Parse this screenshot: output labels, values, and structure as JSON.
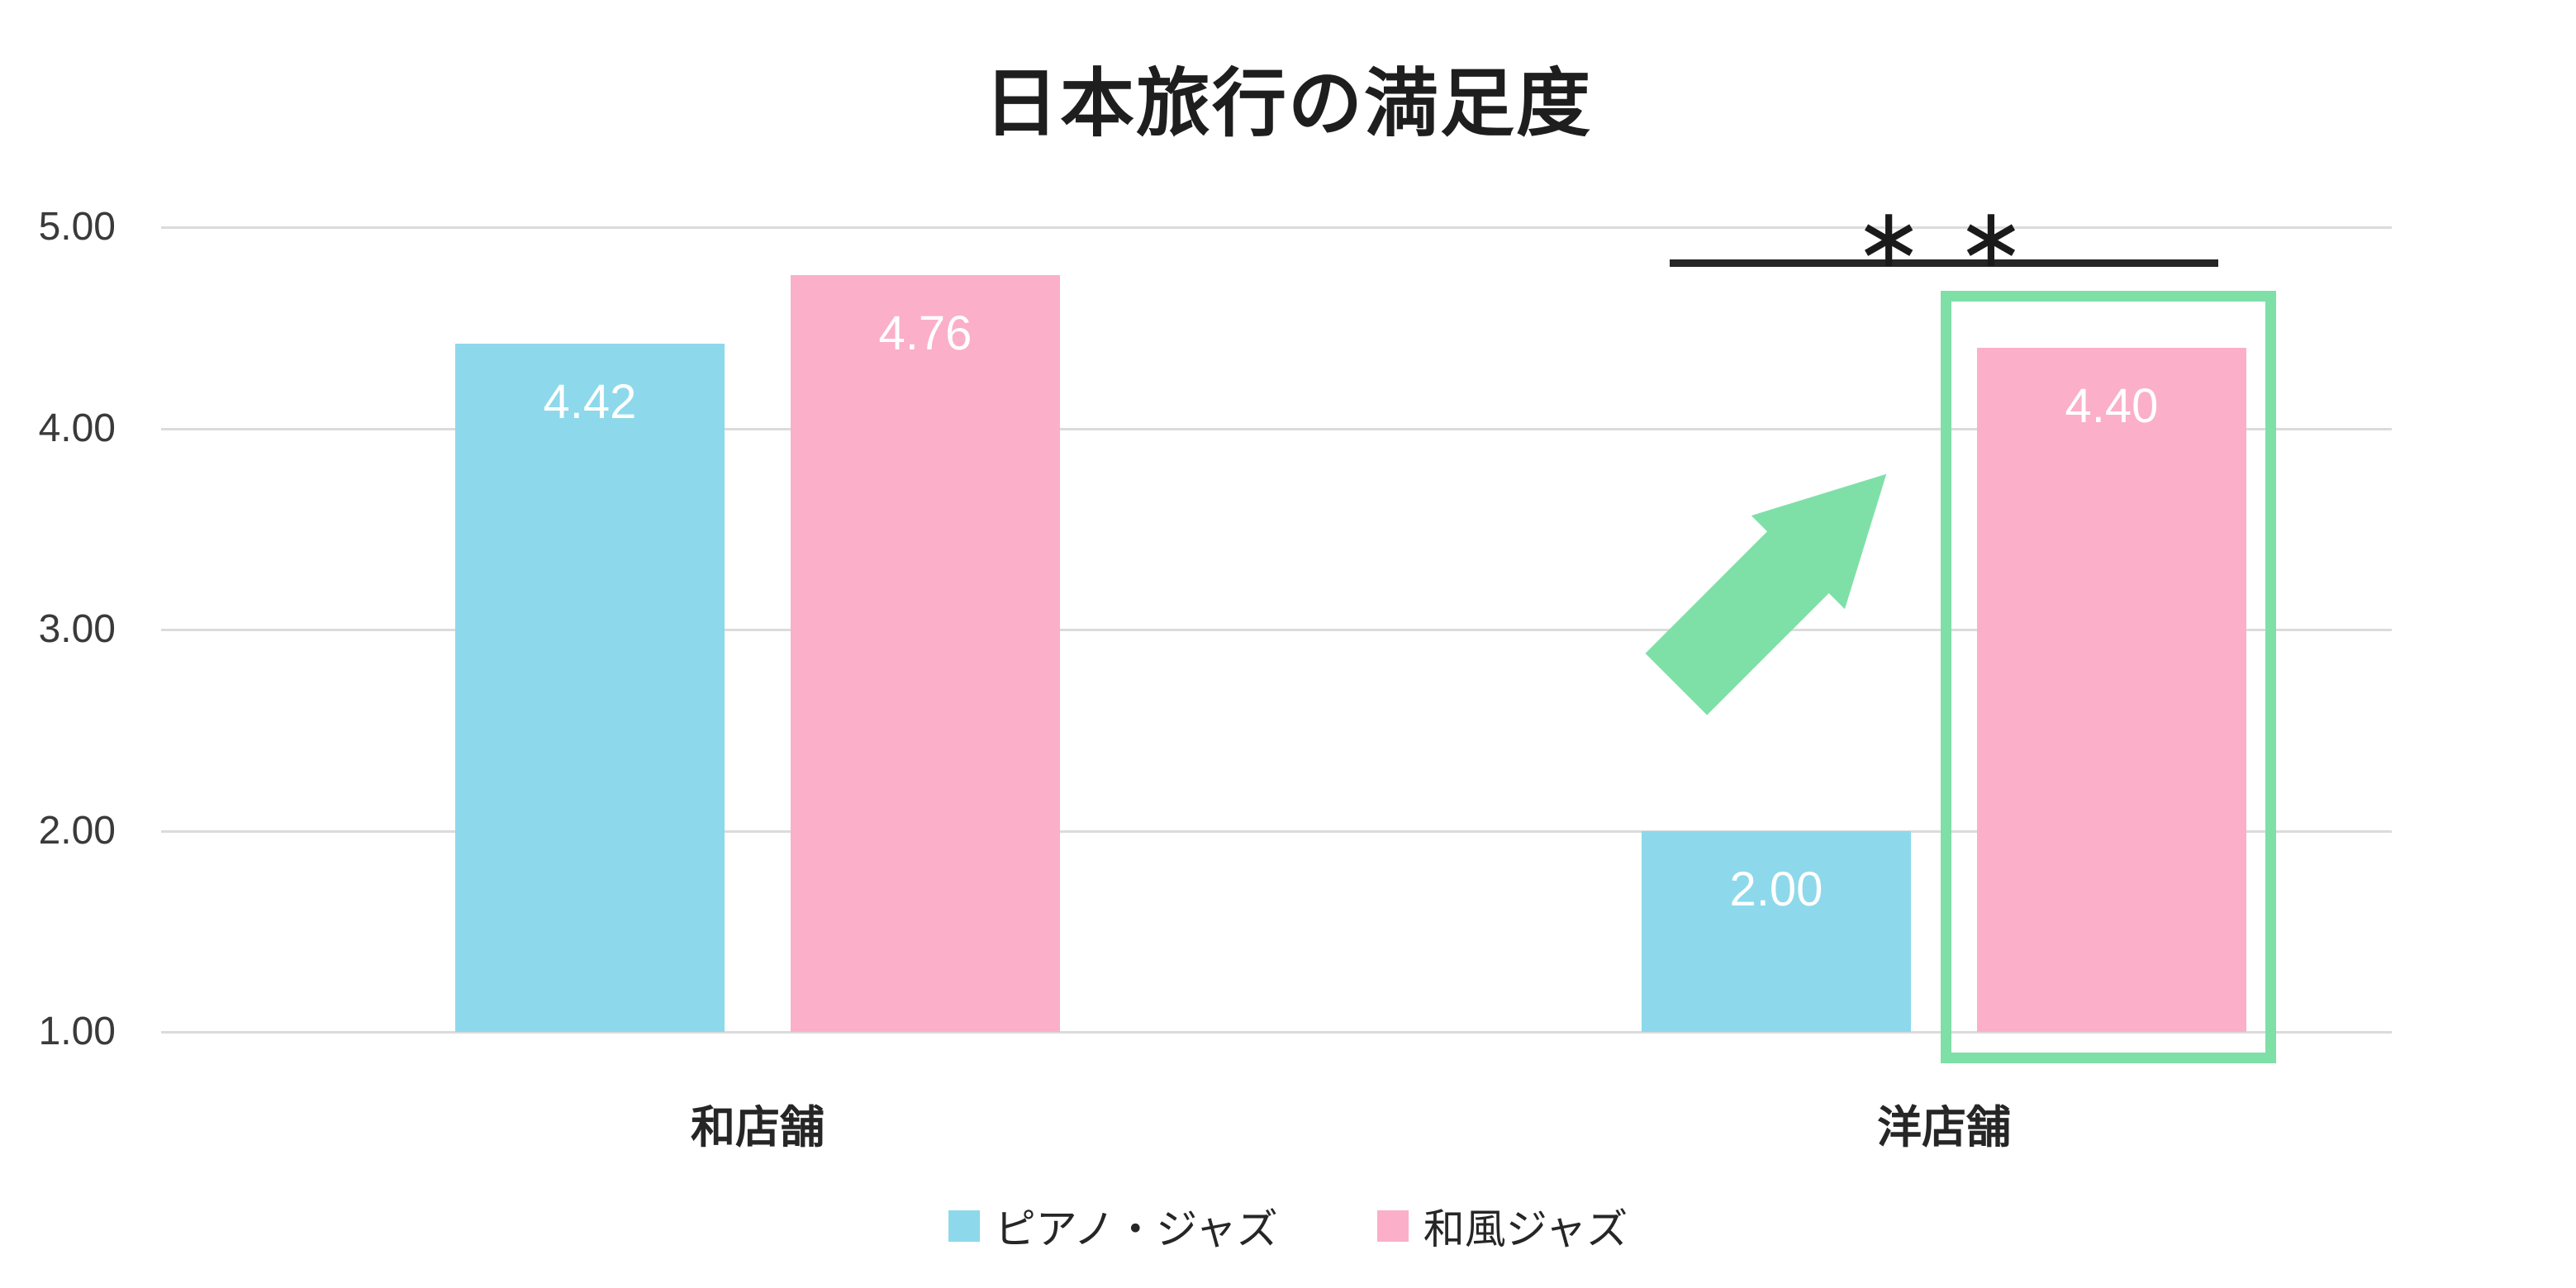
{
  "chart_data": {
    "type": "bar",
    "title": "日本旅行の満足度",
    "categories": [
      "和店舗",
      "洋店舗"
    ],
    "series": [
      {
        "name": "ピアノ・ジャズ",
        "color": "#8dd9eb",
        "values": [
          4.42,
          2.0
        ],
        "labels": [
          "4.42",
          "2.00"
        ]
      },
      {
        "name": "和風ジャズ",
        "color": "#fbafc9",
        "values": [
          4.76,
          4.4
        ],
        "labels": [
          "4.76",
          "4.40"
        ]
      }
    ],
    "y_axis": {
      "min": 1.0,
      "max": 5.0,
      "tick_labels": [
        "5.00",
        "4.00",
        "3.00",
        "2.00",
        "1.00"
      ],
      "tick_values": [
        5,
        4,
        3,
        2,
        1
      ]
    },
    "grid": true,
    "legend_position": "bottom"
  },
  "annotations": {
    "significance_label": "∗∗",
    "significance_bar": "between 洋店舗 bars",
    "highlight": "green box around 和風ジャズ 4.40 bar",
    "arrow": "green up-right arrow"
  },
  "colors": {
    "bar_blue": "#8dd9eb",
    "bar_pink": "#fbafc9",
    "accent_green": "#7ee0a7",
    "gridline": "#dbdbdb",
    "text_dark": "#262626",
    "significance_line": "#262626",
    "value_label": "#ffffff",
    "background": "#ffffff"
  }
}
